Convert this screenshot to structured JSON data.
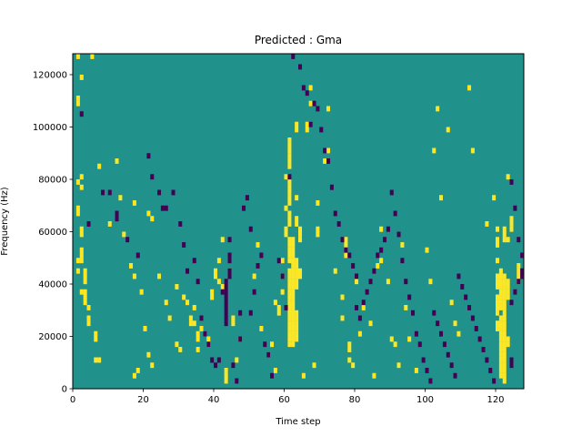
{
  "chart_data": {
    "type": "heatmap",
    "title": "Predicted : Gma",
    "xlabel": "Time step",
    "ylabel": "Frequency (Hz)",
    "xlim": [
      0,
      128
    ],
    "ylim": [
      0,
      128000
    ],
    "x_ticks": [
      0,
      20,
      40,
      60,
      80,
      100,
      120
    ],
    "y_ticks": [
      0,
      20000,
      40000,
      60000,
      80000,
      100000,
      120000
    ],
    "grid": false,
    "legend": "none",
    "n_time_steps": 128,
    "n_freq_bins": 64,
    "colors": {
      "background": "#21918c",
      "high": "#fde725",
      "low": "#440154"
    },
    "background_value": 0,
    "high_value": 1,
    "low_value": -1,
    "high_cells": [
      [
        1,
        63
      ],
      [
        5,
        63
      ],
      [
        2,
        59
      ],
      [
        1,
        55
      ],
      [
        1,
        54
      ],
      [
        7,
        42
      ],
      [
        2,
        40
      ],
      [
        1,
        39
      ],
      [
        2,
        38
      ],
      [
        1,
        34
      ],
      [
        1,
        33
      ],
      [
        2,
        30
      ],
      [
        2,
        29
      ],
      [
        2,
        26
      ],
      [
        2,
        25
      ],
      [
        2,
        24
      ],
      [
        1,
        24
      ],
      [
        3,
        22
      ],
      [
        3,
        21
      ],
      [
        3,
        20
      ],
      [
        1,
        22
      ],
      [
        2,
        18
      ],
      [
        3,
        18
      ],
      [
        3,
        17
      ],
      [
        3,
        16
      ],
      [
        4,
        15
      ],
      [
        4,
        13
      ],
      [
        4,
        12
      ],
      [
        6,
        10
      ],
      [
        6,
        9
      ],
      [
        7,
        5
      ],
      [
        6,
        5
      ],
      [
        10,
        31
      ],
      [
        12,
        43
      ],
      [
        13,
        36
      ],
      [
        17,
        35
      ],
      [
        21,
        33
      ],
      [
        22,
        32
      ],
      [
        14,
        29
      ],
      [
        16,
        23
      ],
      [
        17,
        21
      ],
      [
        19,
        18
      ],
      [
        20,
        11
      ],
      [
        21,
        6
      ],
      [
        22,
        4
      ],
      [
        17,
        2
      ],
      [
        18,
        3
      ],
      [
        24,
        21
      ],
      [
        26,
        16
      ],
      [
        27,
        13
      ],
      [
        29,
        8
      ],
      [
        29,
        19
      ],
      [
        30,
        7
      ],
      [
        31,
        17
      ],
      [
        32,
        16
      ],
      [
        33,
        13
      ],
      [
        33,
        12
      ],
      [
        34,
        15
      ],
      [
        34,
        12
      ],
      [
        35,
        10
      ],
      [
        35,
        9
      ],
      [
        35,
        7
      ],
      [
        36,
        13
      ],
      [
        36,
        11
      ],
      [
        37,
        10
      ],
      [
        38,
        9
      ],
      [
        38,
        8
      ],
      [
        39,
        18
      ],
      [
        39,
        17
      ],
      [
        40,
        21
      ],
      [
        40,
        22
      ],
      [
        41,
        20
      ],
      [
        41,
        24
      ],
      [
        42,
        19
      ],
      [
        42,
        28
      ],
      [
        43,
        3
      ],
      [
        43,
        2
      ],
      [
        43,
        1
      ],
      [
        44,
        22
      ],
      [
        45,
        13
      ],
      [
        45,
        12
      ],
      [
        46,
        5
      ],
      [
        47,
        9
      ],
      [
        51,
        21
      ],
      [
        52,
        27
      ],
      [
        53,
        11
      ],
      [
        55,
        6
      ],
      [
        56,
        8
      ],
      [
        57,
        3
      ],
      [
        57,
        16
      ],
      [
        58,
        15
      ],
      [
        58,
        14
      ],
      [
        59,
        18
      ],
      [
        59,
        21
      ],
      [
        59,
        24
      ],
      [
        60,
        30
      ],
      [
        60,
        29
      ],
      [
        60,
        34
      ],
      [
        60,
        40
      ],
      [
        61,
        28
      ],
      [
        61,
        27
      ],
      [
        61,
        26
      ],
      [
        61,
        25
      ],
      [
        61,
        24
      ],
      [
        61,
        22
      ],
      [
        61,
        21
      ],
      [
        61,
        20
      ],
      [
        61,
        19
      ],
      [
        61,
        18
      ],
      [
        61,
        17
      ],
      [
        61,
        16
      ],
      [
        61,
        15
      ],
      [
        61,
        14
      ],
      [
        61,
        13
      ],
      [
        61,
        12
      ],
      [
        61,
        11
      ],
      [
        61,
        10
      ],
      [
        61,
        9
      ],
      [
        61,
        8
      ],
      [
        61,
        31
      ],
      [
        61,
        32
      ],
      [
        61,
        33
      ],
      [
        61,
        35
      ],
      [
        61,
        36
      ],
      [
        61,
        37
      ],
      [
        61,
        38
      ],
      [
        61,
        39
      ],
      [
        61,
        42
      ],
      [
        61,
        43
      ],
      [
        61,
        44
      ],
      [
        61,
        45
      ],
      [
        61,
        46
      ],
      [
        61,
        47
      ],
      [
        62,
        20
      ],
      [
        62,
        19
      ],
      [
        62,
        18
      ],
      [
        62,
        17
      ],
      [
        62,
        16
      ],
      [
        62,
        15
      ],
      [
        62,
        14
      ],
      [
        62,
        13
      ],
      [
        62,
        12
      ],
      [
        62,
        11
      ],
      [
        62,
        10
      ],
      [
        62,
        28
      ],
      [
        62,
        27
      ],
      [
        62,
        26
      ],
      [
        62,
        25
      ],
      [
        62,
        24
      ],
      [
        62,
        23
      ],
      [
        62,
        22
      ],
      [
        62,
        21
      ],
      [
        62,
        8
      ],
      [
        62,
        9
      ],
      [
        63,
        14
      ],
      [
        63,
        13
      ],
      [
        63,
        12
      ],
      [
        63,
        11
      ],
      [
        63,
        10
      ],
      [
        63,
        9
      ],
      [
        63,
        24
      ],
      [
        63,
        23
      ],
      [
        63,
        22
      ],
      [
        63,
        21
      ],
      [
        63,
        20
      ],
      [
        63,
        19
      ],
      [
        63,
        31
      ],
      [
        63,
        32
      ],
      [
        63,
        36
      ],
      [
        63,
        49
      ],
      [
        63,
        50
      ],
      [
        64,
        30
      ],
      [
        64,
        29
      ],
      [
        64,
        28
      ],
      [
        64,
        22
      ],
      [
        64,
        21
      ],
      [
        65,
        2
      ],
      [
        66,
        49
      ],
      [
        66,
        50
      ],
      [
        67,
        54
      ],
      [
        67,
        57
      ],
      [
        68,
        4
      ],
      [
        69,
        30
      ],
      [
        69,
        29
      ],
      [
        69,
        35
      ],
      [
        71,
        43
      ],
      [
        72,
        53
      ],
      [
        72,
        45
      ],
      [
        74,
        22
      ],
      [
        76,
        13
      ],
      [
        76,
        17
      ],
      [
        77,
        28
      ],
      [
        77,
        27
      ],
      [
        77,
        26
      ],
      [
        77,
        25
      ],
      [
        78,
        8
      ],
      [
        78,
        7
      ],
      [
        78,
        5
      ],
      [
        79,
        4
      ],
      [
        80,
        20
      ],
      [
        81,
        10
      ],
      [
        82,
        15
      ],
      [
        84,
        12
      ],
      [
        85,
        2
      ],
      [
        86,
        23
      ],
      [
        87,
        24
      ],
      [
        87,
        30
      ],
      [
        89,
        20
      ],
      [
        90,
        9
      ],
      [
        91,
        8
      ],
      [
        92,
        4
      ],
      [
        93,
        27
      ],
      [
        94,
        15
      ],
      [
        95,
        9
      ],
      [
        97,
        3
      ],
      [
        100,
        26
      ],
      [
        101,
        20
      ],
      [
        102,
        45
      ],
      [
        103,
        53
      ],
      [
        104,
        36
      ],
      [
        106,
        49
      ],
      [
        107,
        16
      ],
      [
        108,
        12
      ],
      [
        109,
        10
      ],
      [
        112,
        57
      ],
      [
        113,
        45
      ],
      [
        117,
        31
      ],
      [
        119,
        36
      ],
      [
        120,
        30
      ],
      [
        120,
        28
      ],
      [
        120,
        27
      ],
      [
        120,
        24
      ],
      [
        120,
        21
      ],
      [
        120,
        20
      ],
      [
        120,
        19
      ],
      [
        120,
        17
      ],
      [
        120,
        16
      ],
      [
        120,
        15
      ],
      [
        120,
        14
      ],
      [
        120,
        12
      ],
      [
        120,
        11
      ],
      [
        121,
        22
      ],
      [
        121,
        21
      ],
      [
        121,
        20
      ],
      [
        121,
        19
      ],
      [
        121,
        18
      ],
      [
        121,
        17
      ],
      [
        121,
        16
      ],
      [
        121,
        15
      ],
      [
        121,
        13
      ],
      [
        121,
        12
      ],
      [
        121,
        11
      ],
      [
        121,
        10
      ],
      [
        121,
        9
      ],
      [
        121,
        8
      ],
      [
        121,
        7
      ],
      [
        121,
        6
      ],
      [
        121,
        5
      ],
      [
        121,
        4
      ],
      [
        121,
        3
      ],
      [
        121,
        2
      ],
      [
        122,
        21
      ],
      [
        122,
        20
      ],
      [
        122,
        19
      ],
      [
        122,
        18
      ],
      [
        122,
        17
      ],
      [
        122,
        16
      ],
      [
        122,
        15
      ],
      [
        122,
        14
      ],
      [
        122,
        13
      ],
      [
        122,
        12
      ],
      [
        122,
        11
      ],
      [
        122,
        10
      ],
      [
        122,
        9
      ],
      [
        122,
        8
      ],
      [
        122,
        7
      ],
      [
        122,
        6
      ],
      [
        122,
        5
      ],
      [
        122,
        4
      ],
      [
        122,
        3
      ],
      [
        122,
        2
      ],
      [
        122,
        1
      ],
      [
        123,
        20
      ],
      [
        123,
        19
      ],
      [
        123,
        18
      ],
      [
        123,
        17
      ],
      [
        123,
        9
      ],
      [
        123,
        8
      ],
      [
        122,
        28
      ],
      [
        122,
        29
      ],
      [
        122,
        30
      ],
      [
        123,
        28
      ],
      [
        123,
        40
      ],
      [
        124,
        30
      ],
      [
        124,
        31
      ],
      [
        124,
        32
      ],
      [
        126,
        20
      ],
      [
        126,
        21
      ],
      [
        126,
        22
      ],
      [
        126,
        23
      ]
    ],
    "low_cells": [
      [
        2,
        52
      ],
      [
        4,
        31
      ],
      [
        8,
        37
      ],
      [
        10,
        37
      ],
      [
        12,
        32
      ],
      [
        12,
        33
      ],
      [
        15,
        28
      ],
      [
        18,
        25
      ],
      [
        21,
        44
      ],
      [
        22,
        40
      ],
      [
        24,
        37
      ],
      [
        25,
        34
      ],
      [
        26,
        34
      ],
      [
        28,
        37
      ],
      [
        30,
        31
      ],
      [
        31,
        27
      ],
      [
        32,
        22
      ],
      [
        34,
        24
      ],
      [
        35,
        20
      ],
      [
        36,
        13
      ],
      [
        37,
        10
      ],
      [
        38,
        8
      ],
      [
        39,
        5
      ],
      [
        40,
        4
      ],
      [
        41,
        5
      ],
      [
        42,
        18
      ],
      [
        43,
        12
      ],
      [
        43,
        13
      ],
      [
        43,
        14
      ],
      [
        43,
        15
      ],
      [
        43,
        16
      ],
      [
        43,
        17
      ],
      [
        43,
        18
      ],
      [
        43,
        19
      ],
      [
        43,
        20
      ],
      [
        44,
        21
      ],
      [
        44,
        22
      ],
      [
        44,
        24
      ],
      [
        44,
        25
      ],
      [
        44,
        28
      ],
      [
        45,
        4
      ],
      [
        46,
        1
      ],
      [
        47,
        9
      ],
      [
        47,
        14
      ],
      [
        48,
        34
      ],
      [
        49,
        36
      ],
      [
        50,
        30
      ],
      [
        50,
        14
      ],
      [
        51,
        18
      ],
      [
        52,
        23
      ],
      [
        53,
        25
      ],
      [
        54,
        8
      ],
      [
        55,
        6
      ],
      [
        56,
        2
      ],
      [
        58,
        24
      ],
      [
        59,
        21
      ],
      [
        60,
        15
      ],
      [
        61,
        40
      ],
      [
        62,
        63
      ],
      [
        64,
        61
      ],
      [
        65,
        57
      ],
      [
        66,
        56
      ],
      [
        67,
        50
      ],
      [
        68,
        54
      ],
      [
        69,
        53
      ],
      [
        70,
        49
      ],
      [
        71,
        45
      ],
      [
        72,
        43
      ],
      [
        73,
        38
      ],
      [
        74,
        33
      ],
      [
        75,
        31
      ],
      [
        76,
        28
      ],
      [
        77,
        26
      ],
      [
        78,
        25
      ],
      [
        79,
        23
      ],
      [
        80,
        21
      ],
      [
        80,
        15
      ],
      [
        81,
        13
      ],
      [
        82,
        16
      ],
      [
        83,
        18
      ],
      [
        84,
        20
      ],
      [
        85,
        22
      ],
      [
        86,
        25
      ],
      [
        87,
        26
      ],
      [
        88,
        28
      ],
      [
        89,
        30
      ],
      [
        90,
        37
      ],
      [
        91,
        33
      ],
      [
        92,
        29
      ],
      [
        93,
        24
      ],
      [
        94,
        20
      ],
      [
        95,
        17
      ],
      [
        96,
        14
      ],
      [
        97,
        10
      ],
      [
        98,
        8
      ],
      [
        99,
        5
      ],
      [
        100,
        3
      ],
      [
        101,
        1
      ],
      [
        102,
        14
      ],
      [
        103,
        12
      ],
      [
        104,
        10
      ],
      [
        105,
        8
      ],
      [
        106,
        6
      ],
      [
        107,
        4
      ],
      [
        108,
        2
      ],
      [
        109,
        21
      ],
      [
        110,
        19
      ],
      [
        111,
        17
      ],
      [
        112,
        15
      ],
      [
        113,
        13
      ],
      [
        114,
        11
      ],
      [
        115,
        9
      ],
      [
        116,
        7
      ],
      [
        117,
        5
      ],
      [
        118,
        3
      ],
      [
        119,
        1
      ],
      [
        124,
        39
      ],
      [
        125,
        34
      ],
      [
        126,
        28
      ],
      [
        127,
        25
      ],
      [
        127,
        22
      ],
      [
        127,
        21
      ],
      [
        126,
        20
      ],
      [
        125,
        18
      ],
      [
        124,
        16
      ],
      [
        124,
        5
      ],
      [
        124,
        4
      ]
    ]
  }
}
